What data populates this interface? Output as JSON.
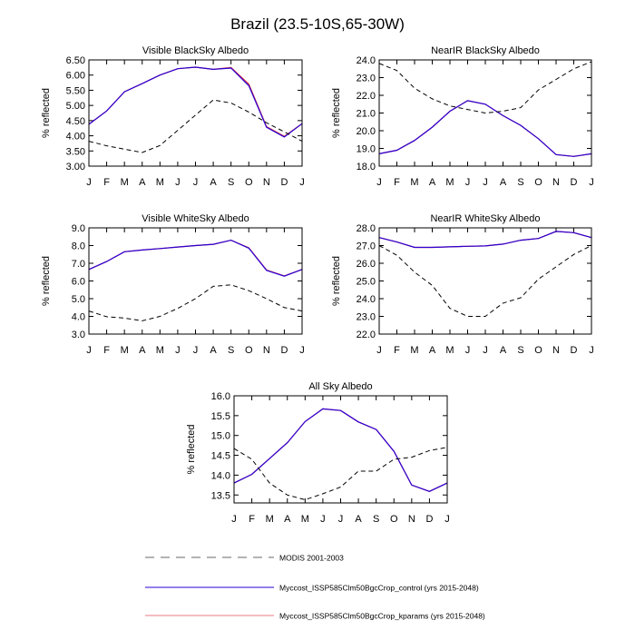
{
  "figure": {
    "title": "Brazil (23.5-10S,65-30W)"
  },
  "colors": {
    "observed": "#000000",
    "control": "#2a00d4",
    "kparams": "#e0303a"
  },
  "legend": [
    {
      "label": "MODIS 2001-2003",
      "style": "dashed",
      "color": "#9a9a9a"
    },
    {
      "label": "Myccost_ISSP585Clm50BgcCrop_control (yrs 2015-2048)",
      "style": "solid",
      "color": "#2a00d4"
    },
    {
      "label": "Myccost_ISSP585Clm50BgcCrop_kparams (yrs 2015-2048)",
      "style": "solid",
      "color": "#e87a80"
    }
  ],
  "chart_data": [
    {
      "type": "line",
      "title": "Visible BlackSky Albedo",
      "ylabel": "% reflected",
      "xlabel": "",
      "categories": [
        "J",
        "F",
        "M",
        "A",
        "M",
        "J",
        "J",
        "A",
        "S",
        "O",
        "N",
        "D",
        "J"
      ],
      "ylim": [
        3.0,
        6.5
      ],
      "yticks": [
        "3.00",
        "3.50",
        "4.00",
        "4.50",
        "5.00",
        "5.50",
        "6.00",
        "6.50"
      ],
      "series": [
        {
          "name": "MODIS 2001-2003",
          "values": [
            3.82,
            3.67,
            3.56,
            3.45,
            3.68,
            4.18,
            4.68,
            5.18,
            5.08,
            4.78,
            4.43,
            4.13,
            3.82
          ]
        },
        {
          "name": "Myccost_ISSP585Clm50BgcCrop_control (yrs 2015-2048)",
          "values": [
            4.38,
            4.82,
            5.45,
            5.72,
            6.0,
            6.21,
            6.26,
            6.19,
            6.23,
            5.65,
            4.28,
            3.96,
            4.4
          ]
        },
        {
          "name": "Myccost_ISSP585Clm50BgcCrop_kparams (yrs 2015-2048)",
          "values": [
            4.38,
            4.82,
            5.45,
            5.72,
            6.0,
            6.21,
            6.26,
            6.19,
            6.25,
            5.7,
            4.3,
            3.98,
            4.4
          ]
        }
      ]
    },
    {
      "type": "line",
      "title": "NearIR BlackSky Albedo",
      "ylabel": "% reflected",
      "xlabel": "",
      "categories": [
        "J",
        "F",
        "M",
        "A",
        "M",
        "J",
        "J",
        "A",
        "S",
        "O",
        "N",
        "D",
        "J"
      ],
      "ylim": [
        18.0,
        24.0
      ],
      "yticks": [
        "18.0",
        "19.0",
        "20.0",
        "21.0",
        "22.0",
        "23.0",
        "24.0"
      ],
      "series": [
        {
          "name": "MODIS 2001-2003",
          "values": [
            23.8,
            23.4,
            22.4,
            21.8,
            21.4,
            21.2,
            21.0,
            21.1,
            21.3,
            22.3,
            22.9,
            23.5,
            23.9
          ]
        },
        {
          "name": "Myccost_ISSP585Clm50BgcCrop_control (yrs 2015-2048)",
          "values": [
            18.7,
            18.9,
            19.45,
            20.2,
            21.1,
            21.7,
            21.5,
            20.85,
            20.3,
            19.55,
            18.65,
            18.55,
            18.7
          ]
        },
        {
          "name": "Myccost_ISSP585Clm50BgcCrop_kparams (yrs 2015-2048)",
          "values": [
            18.7,
            18.9,
            19.45,
            20.2,
            21.1,
            21.7,
            21.5,
            20.85,
            20.3,
            19.55,
            18.65,
            18.55,
            18.7
          ]
        }
      ]
    },
    {
      "type": "line",
      "title": "Visible WhiteSky Albedo",
      "ylabel": "% reflected",
      "xlabel": "",
      "categories": [
        "J",
        "F",
        "M",
        "A",
        "M",
        "J",
        "J",
        "A",
        "S",
        "O",
        "N",
        "D",
        "J"
      ],
      "ylim": [
        3.0,
        9.0
      ],
      "yticks": [
        "3.0",
        "4.0",
        "5.0",
        "6.0",
        "7.0",
        "8.0",
        "9.0"
      ],
      "series": [
        {
          "name": "MODIS 2001-2003",
          "values": [
            4.3,
            3.98,
            3.9,
            3.75,
            4.0,
            4.45,
            5.0,
            5.7,
            5.78,
            5.45,
            5.0,
            4.5,
            4.3
          ]
        },
        {
          "name": "Myccost_ISSP585Clm50BgcCrop_control (yrs 2015-2048)",
          "values": [
            6.65,
            7.1,
            7.65,
            7.75,
            7.83,
            7.92,
            8.0,
            8.07,
            8.3,
            7.85,
            6.6,
            6.27,
            6.65
          ]
        },
        {
          "name": "Myccost_ISSP585Clm50BgcCrop_kparams (yrs 2015-2048)",
          "values": [
            6.65,
            7.1,
            7.65,
            7.75,
            7.83,
            7.92,
            8.0,
            8.07,
            8.3,
            7.87,
            6.62,
            6.28,
            6.65
          ]
        }
      ]
    },
    {
      "type": "line",
      "title": "NearIR WhiteSky Albedo",
      "ylabel": "% reflected",
      "xlabel": "",
      "categories": [
        "J",
        "F",
        "M",
        "A",
        "M",
        "J",
        "J",
        "A",
        "S",
        "O",
        "N",
        "D",
        "J"
      ],
      "ylim": [
        22.0,
        28.0
      ],
      "yticks": [
        "22.0",
        "23.0",
        "24.0",
        "25.0",
        "26.0",
        "27.0",
        "28.0"
      ],
      "series": [
        {
          "name": "MODIS 2001-2003",
          "values": [
            27.0,
            26.45,
            25.5,
            24.75,
            23.45,
            23.0,
            23.0,
            23.75,
            24.05,
            25.1,
            25.8,
            26.5,
            27.0
          ]
        },
        {
          "name": "Myccost_ISSP585Clm50BgcCrop_control (yrs 2015-2048)",
          "values": [
            27.45,
            27.2,
            26.9,
            26.9,
            26.93,
            26.96,
            26.98,
            27.08,
            27.3,
            27.4,
            27.8,
            27.73,
            27.45
          ]
        },
        {
          "name": "Myccost_ISSP585Clm50BgcCrop_kparams (yrs 2015-2048)",
          "values": [
            27.45,
            27.2,
            26.9,
            26.9,
            26.93,
            26.96,
            26.98,
            27.08,
            27.3,
            27.4,
            27.8,
            27.73,
            27.45
          ]
        }
      ]
    },
    {
      "type": "line",
      "title": "All Sky Albedo",
      "ylabel": "% reflected",
      "xlabel": "",
      "categories": [
        "J",
        "F",
        "M",
        "A",
        "M",
        "J",
        "J",
        "A",
        "S",
        "O",
        "N",
        "D",
        "J"
      ],
      "ylim": [
        13.3,
        16.0
      ],
      "yticks": [
        "13.5",
        "14.0",
        "14.5",
        "15.0",
        "15.5",
        "16.0"
      ],
      "series": [
        {
          "name": "MODIS 2001-2003",
          "values": [
            14.67,
            14.4,
            13.8,
            13.5,
            13.38,
            13.53,
            13.7,
            14.1,
            14.1,
            14.4,
            14.45,
            14.62,
            14.7
          ]
        },
        {
          "name": "Myccost_ISSP585Clm50BgcCrop_control (yrs 2015-2048)",
          "values": [
            13.8,
            14.02,
            14.42,
            14.82,
            15.35,
            15.67,
            15.63,
            15.34,
            15.15,
            14.6,
            13.75,
            13.59,
            13.8
          ]
        },
        {
          "name": "Myccost_ISSP585Clm50BgcCrop_kparams (yrs 2015-2048)",
          "values": [
            13.8,
            14.02,
            14.42,
            14.82,
            15.35,
            15.67,
            15.63,
            15.34,
            15.15,
            14.6,
            13.75,
            13.59,
            13.8
          ]
        }
      ]
    }
  ]
}
